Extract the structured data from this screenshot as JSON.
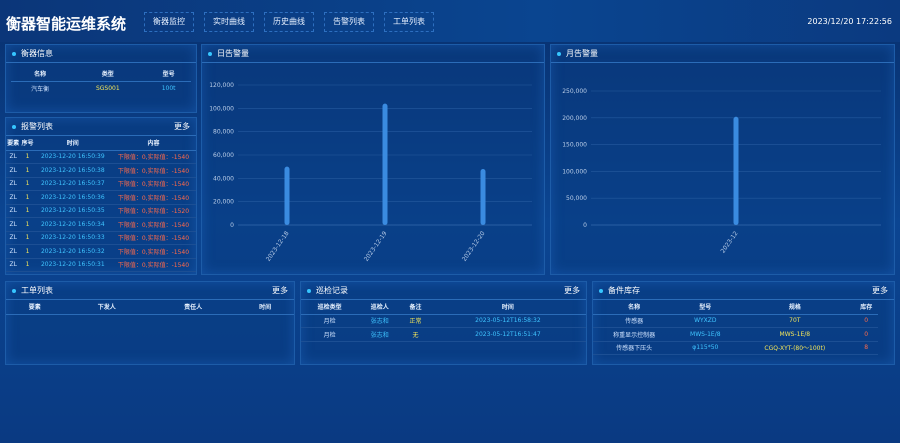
{
  "header": {
    "title": "衡器智能运维系统",
    "nav": [
      "衡器监控",
      "实时曲线",
      "历史曲线",
      "告警列表",
      "工单列表"
    ],
    "datetime": "2023/12/20 17:22:56"
  },
  "scale_info": {
    "title": "衡器信息",
    "columns": [
      "名称",
      "类型",
      "型号"
    ],
    "rows": [
      [
        "汽车衡",
        "SGS001",
        "100t"
      ]
    ]
  },
  "alarm_list": {
    "title": "报警列表",
    "more": "更多",
    "columns": [
      "要素",
      "序号",
      "时间",
      "内容"
    ],
    "rows": [
      [
        "ZL",
        "1",
        "2023-12-20 16:50:39",
        "下限值：0,实际值：-1540"
      ],
      [
        "ZL",
        "1",
        "2023-12-20 16:50:38",
        "下限值：0,实际值：-1540"
      ],
      [
        "ZL",
        "1",
        "2023-12-20 16:50:37",
        "下限值：0,实际值：-1540"
      ],
      [
        "ZL",
        "1",
        "2023-12-20 16:50:36",
        "下限值：0,实际值：-1540"
      ],
      [
        "ZL",
        "1",
        "2023-12-20 16:50:35",
        "下限值：0,实际值：-1520"
      ],
      [
        "ZL",
        "1",
        "2023-12-20 16:50:34",
        "下限值：0,实际值：-1540"
      ],
      [
        "ZL",
        "1",
        "2023-12-20 16:50:33",
        "下限值：0,实际值：-1540"
      ],
      [
        "ZL",
        "1",
        "2023-12-20 16:50:32",
        "下限值：0,实际值：-1540"
      ],
      [
        "ZL",
        "1",
        "2023-12-20 16:50:31",
        "下限值：0,实际值：-1540"
      ]
    ]
  },
  "chart_data": [
    {
      "type": "bar",
      "title": "日告警量",
      "categories": [
        "2023-12-18",
        "2023-12-19",
        "2023-12-20"
      ],
      "values": [
        50000,
        104000,
        48000
      ],
      "ylim": [
        0,
        120000
      ],
      "yticks": [
        "0",
        "20,000",
        "40,000",
        "60,000",
        "80,000",
        "100,000",
        "120,000"
      ],
      "color": "#3a8be0"
    },
    {
      "type": "bar",
      "title": "月告警量",
      "categories": [
        "2023-12"
      ],
      "values": [
        202000
      ],
      "ylim": [
        0,
        250000
      ],
      "yticks": [
        "0",
        "50,000",
        "100,000",
        "150,000",
        "200,000",
        "250,000"
      ],
      "color": "#3a8be0"
    }
  ],
  "work_orders": {
    "title": "工单列表",
    "more": "更多",
    "columns": [
      "要素",
      "下发人",
      "责任人",
      "时间"
    ],
    "rows": []
  },
  "inspection": {
    "title": "巡检记录",
    "more": "更多",
    "columns": [
      "巡检类型",
      "巡检人",
      "备注",
      "时间"
    ],
    "rows": [
      [
        "月检",
        "张志和",
        "正常",
        "2023-05-12T16:58:32"
      ],
      [
        "月检",
        "张志和",
        "无",
        "2023-05-12T16:51:47"
      ]
    ]
  },
  "spare_parts": {
    "title": "备件库存",
    "more": "更多",
    "columns": [
      "名称",
      "型号",
      "规格",
      "库存"
    ],
    "rows": [
      [
        "传感器",
        "WYXZD",
        "70T",
        "0"
      ],
      [
        "称重显示控制器",
        "MWS-1E/8",
        "MWS-1E/8",
        "0"
      ],
      [
        "传感器下压头",
        "φ115*50",
        "CGQ-XYT-(80～100t)",
        "8"
      ]
    ]
  }
}
